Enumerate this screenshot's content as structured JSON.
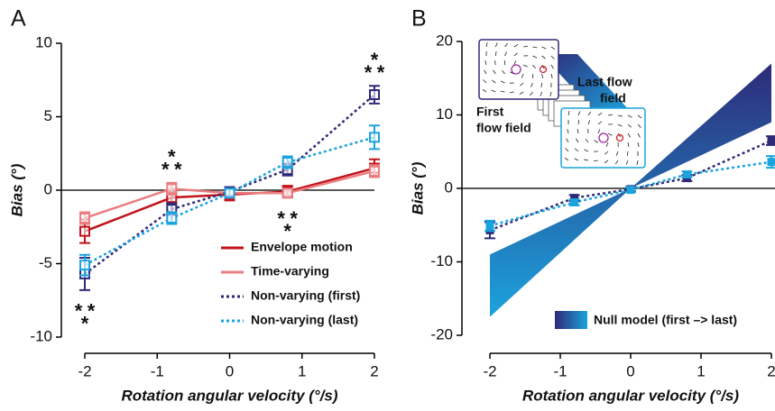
{
  "chart_data": [
    {
      "type": "line",
      "panel": "A",
      "x": [
        -2,
        -0.8,
        0,
        0.8,
        2
      ],
      "xlim": [
        -2,
        2
      ],
      "xticks": [
        -2,
        -1,
        0,
        1,
        2
      ],
      "ylim": [
        -10,
        10
      ],
      "yticks": [
        -10,
        -5,
        0,
        5,
        10
      ],
      "xlabel": "Rotation angular velocity (°/s)",
      "ylabel": "Bias (°)",
      "marker": "open",
      "series": [
        {
          "name": "Envelope motion",
          "color": "#c0131a",
          "dash": false,
          "values": [
            -2.8,
            -0.5,
            -0.3,
            -0.1,
            1.5
          ],
          "errors": [
            0.8,
            0.4,
            0.4,
            0.4,
            0.6
          ]
        },
        {
          "name": "Time-varying",
          "color": "#ea7d80",
          "dash": false,
          "values": [
            -1.9,
            0.1,
            -0.2,
            -0.2,
            1.3
          ],
          "errors": [
            0.4,
            0.4,
            0.3,
            0.3,
            0.4
          ],
          "significance": [
            "*",
            "*",
            null,
            "*",
            "*"
          ]
        },
        {
          "name": "Non-varying (first)",
          "color": "#2e2a78",
          "dash": true,
          "values": [
            -5.7,
            -1.3,
            -0.1,
            1.4,
            6.5
          ],
          "errors": [
            1.1,
            0.4,
            0.3,
            0.4,
            0.6
          ],
          "significance": [
            "*",
            "*",
            null,
            "*",
            "*"
          ]
        },
        {
          "name": "Non-varying (last)",
          "color": "#1ba3dd",
          "dash": true,
          "values": [
            -5.1,
            -1.9,
            -0.2,
            1.9,
            3.6
          ],
          "errors": [
            0.7,
            0.4,
            0.3,
            0.4,
            0.8
          ],
          "significance": [
            "*",
            "*",
            null,
            "*",
            "*"
          ]
        }
      ]
    },
    {
      "type": "line",
      "panel": "B",
      "x": [
        -2,
        -0.8,
        0,
        0.8,
        2
      ],
      "xlim": [
        -2,
        2
      ],
      "xticks": [
        -2,
        -1,
        0,
        1,
        2
      ],
      "ylim": [
        -20,
        20
      ],
      "yticks": [
        -20,
        -10,
        0,
        10,
        20
      ],
      "xlabel": "Rotation angular velocity (°/s)",
      "ylabel": "Bias (°)",
      "marker": "filled",
      "series": [
        {
          "color": "#2e2a78",
          "dash": true,
          "values": [
            -5.7,
            -1.3,
            -0.1,
            1.4,
            6.5
          ],
          "errors": [
            1.1,
            0.4,
            0.3,
            0.4,
            0.6
          ]
        },
        {
          "color": "#1ba3dd",
          "dash": true,
          "values": [
            -5.1,
            -1.9,
            -0.2,
            1.9,
            3.6
          ],
          "errors": [
            0.7,
            0.4,
            0.3,
            0.4,
            0.8
          ]
        }
      ],
      "band": {
        "name": "Null model (first –> last)",
        "x": [
          -2,
          0,
          2
        ],
        "first": [
          -17.5,
          0,
          17
        ],
        "last": [
          -9,
          0,
          9
        ],
        "colors": [
          "#2e2a78",
          "#1ba3dd"
        ]
      },
      "inset_labels": [
        [
          "First",
          "flow field"
        ],
        [
          "Last flow",
          "field"
        ]
      ]
    }
  ]
}
